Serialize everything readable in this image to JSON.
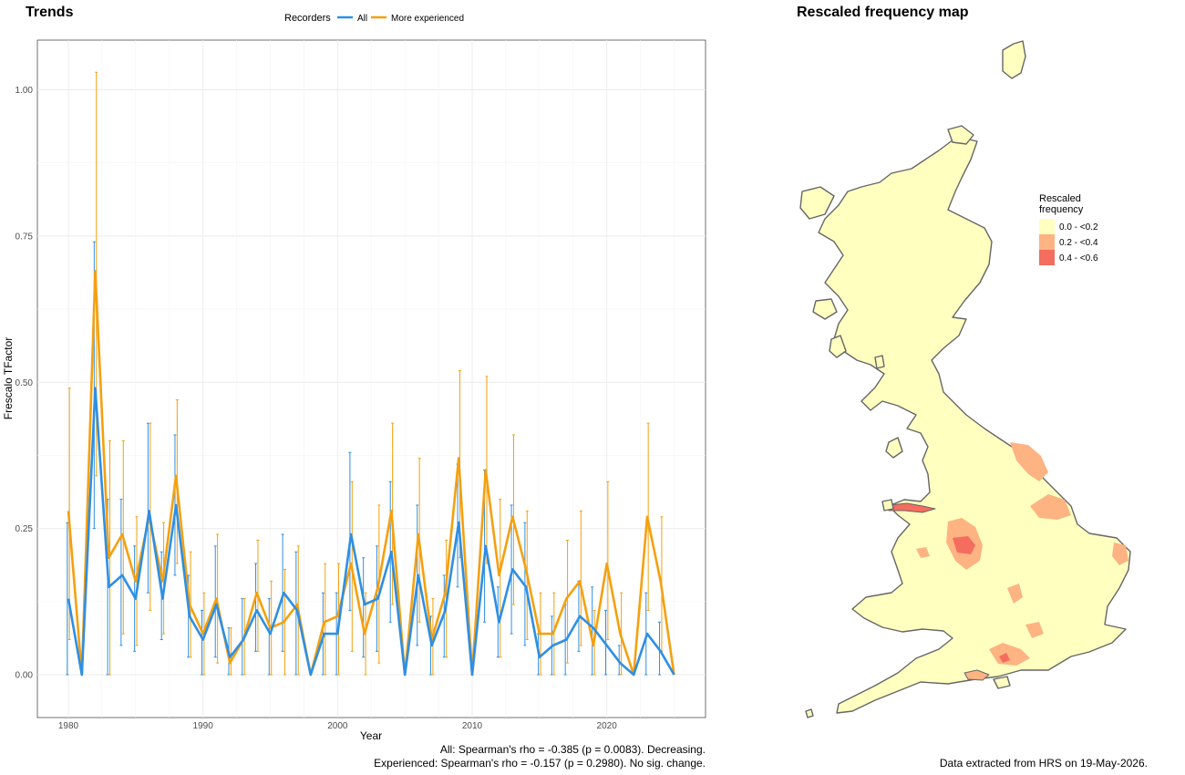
{
  "trends_panel": {
    "title": "Trends",
    "caption_line1": "All: Spearman's rho = -0.385 (p = 0.0083). Decreasing.",
    "caption_line2": "Experienced: Spearman's rho = -0.157 (p = 0.2980). No sig. change."
  },
  "map_panel": {
    "title": "Rescaled frequency map",
    "legend_title_line1": "Rescaled",
    "legend_title_line2": "frequency",
    "legend_items": [
      {
        "label": "0.0 - <0.2",
        "color": "#FFFFC0"
      },
      {
        "label": "0.2 - <0.4",
        "color": "#FDB382"
      },
      {
        "label": "0.4 - <0.6",
        "color": "#F46D5E"
      }
    ],
    "land_color": "#FFFFC0",
    "outline_color": "#666666",
    "footer": "Data extracted from HRS on 19-May-2026."
  },
  "chart_data": {
    "type": "line",
    "xlabel": "Year",
    "ylabel": "Frescalo TFactor",
    "xlim": [
      1978.5,
      1977.5
    ],
    "ylim": [
      -0.075,
      1.075
    ],
    "xticks": [
      1980,
      1990,
      2000,
      2010,
      2020
    ],
    "yticks": [
      0.0,
      0.25,
      0.5,
      0.75,
      1.0
    ],
    "ytick_labels": [
      "0.00",
      "0.25",
      "0.50",
      "0.75",
      "1.00"
    ],
    "grid": true,
    "legend": {
      "title": "Recorders",
      "placement": "top"
    },
    "x": [
      1980,
      1981,
      1982,
      1983,
      1984,
      1985,
      1986,
      1987,
      1988,
      1989,
      1990,
      1991,
      1992,
      1993,
      1994,
      1995,
      1996,
      1997,
      1998,
      1999,
      2000,
      2001,
      2002,
      2003,
      2004,
      2005,
      2006,
      2007,
      2008,
      2009,
      2010,
      2011,
      2012,
      2013,
      2014,
      2015,
      2016,
      2017,
      2018,
      2019,
      2020,
      2021,
      2022,
      2023,
      2024,
      2025
    ],
    "series": [
      {
        "name": "All",
        "color": "#2E8FE3",
        "values": [
          0.13,
          0.0,
          0.49,
          0.15,
          0.17,
          0.13,
          0.28,
          0.13,
          0.29,
          0.1,
          0.06,
          0.12,
          0.03,
          0.06,
          0.11,
          0.07,
          0.14,
          0.11,
          0.0,
          0.07,
          0.07,
          0.24,
          0.12,
          0.13,
          0.21,
          0.0,
          0.17,
          0.05,
          0.11,
          0.26,
          0.0,
          0.22,
          0.09,
          0.18,
          0.15,
          0.03,
          0.05,
          0.06,
          0.1,
          0.08,
          0.05,
          0.02,
          0.0,
          0.07,
          0.04,
          0.0
        ],
        "lower": [
          0.0,
          0.0,
          0.25,
          0.0,
          0.05,
          0.04,
          0.14,
          0.06,
          0.17,
          0.03,
          0.0,
          0.03,
          0.0,
          0.0,
          0.04,
          0.0,
          0.04,
          0.0,
          0.0,
          0.0,
          0.0,
          0.11,
          0.03,
          0.04,
          0.09,
          0.0,
          0.05,
          0.0,
          0.03,
          0.15,
          0.0,
          0.09,
          0.03,
          0.07,
          0.05,
          0.0,
          0.0,
          0.0,
          0.04,
          0.0,
          0.0,
          0.0,
          0.0,
          0.0,
          0.0,
          0.0
        ],
        "upper": [
          0.26,
          0.0,
          0.74,
          0.3,
          0.3,
          0.22,
          0.43,
          0.21,
          0.41,
          0.17,
          0.11,
          0.22,
          0.08,
          0.13,
          0.19,
          0.13,
          0.24,
          0.21,
          0.0,
          0.14,
          0.14,
          0.38,
          0.2,
          0.22,
          0.33,
          0.0,
          0.29,
          0.1,
          0.17,
          0.36,
          0.0,
          0.35,
          0.15,
          0.29,
          0.26,
          0.07,
          0.1,
          0.12,
          0.16,
          0.15,
          0.11,
          0.05,
          0.0,
          0.14,
          0.09,
          0.0
        ]
      },
      {
        "name": "More experienced",
        "color": "#F5A00F",
        "values": [
          0.28,
          0.0,
          0.69,
          0.2,
          0.24,
          0.16,
          0.27,
          0.16,
          0.34,
          0.12,
          0.07,
          0.13,
          0.02,
          0.06,
          0.14,
          0.08,
          0.09,
          0.12,
          0.0,
          0.09,
          0.1,
          0.19,
          0.07,
          0.15,
          0.28,
          0.0,
          0.24,
          0.06,
          0.14,
          0.37,
          0.0,
          0.35,
          0.17,
          0.27,
          0.18,
          0.07,
          0.07,
          0.13,
          0.16,
          0.05,
          0.19,
          0.07,
          0.0,
          0.27,
          0.16,
          0.0
        ],
        "lower": [
          0.06,
          0.0,
          0.34,
          0.0,
          0.07,
          0.05,
          0.11,
          0.07,
          0.19,
          0.03,
          0.0,
          0.02,
          0.0,
          0.0,
          0.04,
          0.0,
          0.0,
          0.0,
          0.0,
          0.0,
          0.0,
          0.04,
          0.0,
          0.02,
          0.12,
          0.0,
          0.09,
          0.0,
          0.03,
          0.2,
          0.0,
          0.19,
          0.03,
          0.12,
          0.06,
          0.0,
          0.0,
          0.02,
          0.05,
          0.0,
          0.06,
          0.0,
          0.0,
          0.11,
          0.04,
          0.0
        ],
        "upper": [
          0.49,
          0.0,
          1.03,
          0.4,
          0.4,
          0.27,
          0.43,
          0.26,
          0.47,
          0.21,
          0.14,
          0.24,
          0.08,
          0.13,
          0.23,
          0.16,
          0.18,
          0.22,
          0.0,
          0.19,
          0.19,
          0.33,
          0.14,
          0.29,
          0.43,
          0.0,
          0.37,
          0.13,
          0.23,
          0.52,
          0.0,
          0.51,
          0.3,
          0.41,
          0.28,
          0.14,
          0.14,
          0.23,
          0.28,
          0.11,
          0.33,
          0.14,
          0.0,
          0.43,
          0.27,
          0.0
        ]
      }
    ]
  }
}
